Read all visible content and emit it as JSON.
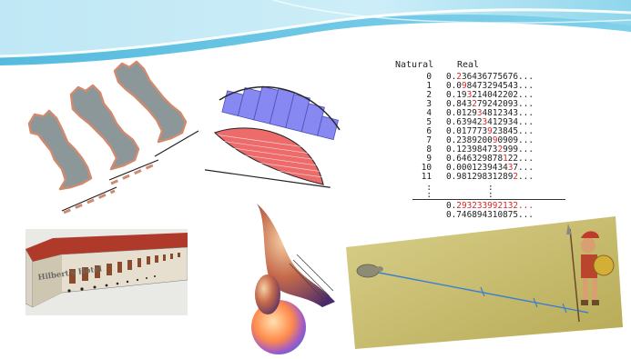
{
  "cantor_table": {
    "header_natural": "Natural",
    "header_real": "Real",
    "rows": [
      {
        "n": "0",
        "pre": "0.",
        "hl": "2",
        "post": "36436775676..."
      },
      {
        "n": "1",
        "pre": "0.0",
        "hl": "9",
        "post": "8473294543..."
      },
      {
        "n": "2",
        "pre": "0.19",
        "hl": "3",
        "post": "214042202..."
      },
      {
        "n": "3",
        "pre": "0.843",
        "hl": "2",
        "post": "79242093..."
      },
      {
        "n": "4",
        "pre": "0.0129",
        "hl": "3",
        "post": "4812343..."
      },
      {
        "n": "5",
        "pre": "0.63942",
        "hl": "3",
        "post": "412934..."
      },
      {
        "n": "6",
        "pre": "0.017773",
        "hl": "9",
        "post": "23845..."
      },
      {
        "n": "7",
        "pre": "0.2389200",
        "hl": "9",
        "post": "0909..."
      },
      {
        "n": "8",
        "pre": "0.12398473",
        "hl": "2",
        "post": "999..."
      },
      {
        "n": "9",
        "pre": "0.646329878",
        "hl": "1",
        "post": "22..."
      },
      {
        "n": "10",
        "pre": "0.0001239434",
        "hl": "3",
        "post": "7..."
      },
      {
        "n": "11",
        "pre": "0.98129831289",
        "hl": "2",
        "post": "..."
      }
    ],
    "result_1_pre": "0.",
    "result_1_hl": "293233992132...",
    "result_2": "0.746894310875...",
    "vdots": ":"
  },
  "hotel_sign": "Hilbert's Hotel",
  "colors": {
    "banner_light": "#c9ecf7",
    "banner_mid": "#7fcfe8",
    "banner_dark": "#3fb0d6",
    "map_fill": "#8c979a",
    "map_outline": "#d08a6f",
    "riemann_blue": "#7c7cf2",
    "riemann_red": "#ee6b6b",
    "digit_highlight": "#d32a2a",
    "roof_red": "#b03a2a",
    "field_green": "#c8ba6a",
    "path_blue": "#3c7fd1"
  }
}
